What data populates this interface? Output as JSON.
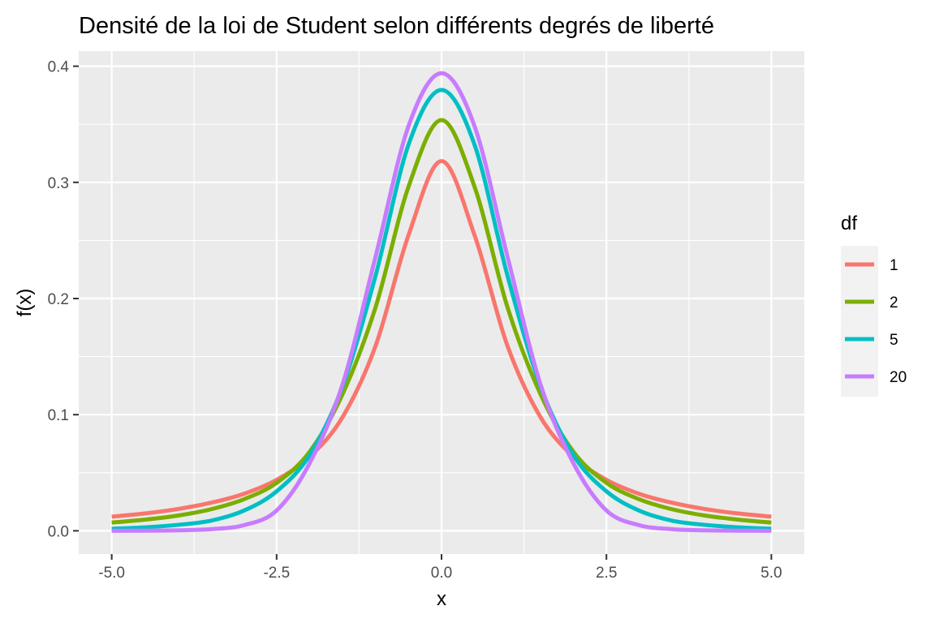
{
  "chart_data": {
    "type": "line",
    "title": "Densité de la loi de Student selon différents degrés de liberté",
    "xlabel": "x",
    "ylabel": "f(x)",
    "xlim": [
      -5.5,
      5.5
    ],
    "ylim": [
      -0.02,
      0.413
    ],
    "x_ticks": [
      -5.0,
      -2.5,
      0.0,
      2.5,
      5.0
    ],
    "x_tick_labels": [
      "-5.0",
      "-2.5",
      "0.0",
      "2.5",
      "5.0"
    ],
    "y_ticks": [
      0.0,
      0.1,
      0.2,
      0.3,
      0.4
    ],
    "y_tick_labels": [
      "0.0",
      "0.1",
      "0.2",
      "0.3",
      "0.4"
    ],
    "grid": true,
    "legend": {
      "title": "df",
      "position": "right"
    },
    "x": [
      -5.0,
      -4.5,
      -4.0,
      -3.5,
      -3.0,
      -2.5,
      -2.0,
      -1.5,
      -1.0,
      -0.5,
      0.0,
      0.5,
      1.0,
      1.5,
      2.0,
      2.5,
      3.0,
      3.5,
      4.0,
      4.5,
      5.0
    ],
    "series": [
      {
        "name": "1",
        "color": "#F8766D",
        "values": [
          0.0122,
          0.0149,
          0.0187,
          0.0241,
          0.0318,
          0.0439,
          0.0637,
          0.0979,
          0.1592,
          0.2546,
          0.3183,
          0.2546,
          0.1592,
          0.0979,
          0.0637,
          0.0439,
          0.0318,
          0.0241,
          0.0187,
          0.0149,
          0.0122
        ]
      },
      {
        "name": "2",
        "color": "#7CAE00",
        "values": [
          0.0071,
          0.0096,
          0.0131,
          0.0185,
          0.0271,
          0.0413,
          0.068,
          0.1177,
          0.1925,
          0.2963,
          0.3536,
          0.2963,
          0.1925,
          0.1177,
          0.068,
          0.0413,
          0.0271,
          0.0185,
          0.0131,
          0.0096,
          0.0071
        ]
      },
      {
        "name": "5",
        "color": "#00BFC4",
        "values": [
          0.0018,
          0.003,
          0.0051,
          0.0087,
          0.0173,
          0.034,
          0.0651,
          0.1245,
          0.2197,
          0.3325,
          0.3796,
          0.3325,
          0.2197,
          0.1245,
          0.0651,
          0.034,
          0.0173,
          0.0087,
          0.0051,
          0.003,
          0.0018
        ]
      },
      {
        "name": "20",
        "color": "#C77CFF",
        "values": [
          0.0,
          0.0001,
          0.0004,
          0.0014,
          0.0048,
          0.0175,
          0.0581,
          0.1261,
          0.236,
          0.3485,
          0.394,
          0.3485,
          0.236,
          0.1261,
          0.0581,
          0.0175,
          0.0048,
          0.0014,
          0.0004,
          0.0001,
          0.0
        ]
      }
    ]
  }
}
